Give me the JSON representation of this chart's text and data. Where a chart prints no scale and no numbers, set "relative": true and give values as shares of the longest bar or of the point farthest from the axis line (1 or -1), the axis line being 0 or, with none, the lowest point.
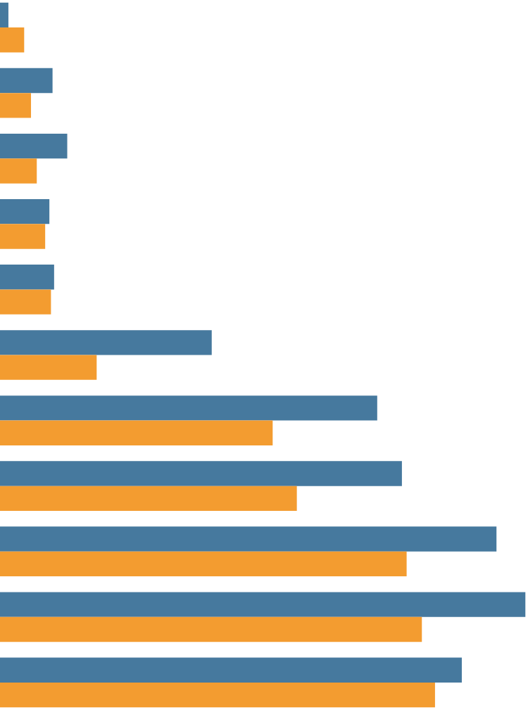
{
  "chart_data": {
    "type": "bar",
    "orientation": "horizontal",
    "relative": true,
    "categories": [
      null,
      null,
      null,
      null,
      null,
      null,
      null,
      null,
      null,
      null,
      null
    ],
    "series": [
      {
        "color": "#46799e",
        "values": [
          0.016,
          0.1,
          0.128,
          0.094,
          0.103,
          0.403,
          0.718,
          0.765,
          0.945,
          1,
          0.879
        ]
      },
      {
        "color": "#f39c30",
        "values": [
          0.046,
          0.059,
          0.07,
          0.086,
          0.097,
          0.184,
          0.519,
          0.565,
          0.774,
          0.803,
          0.828
        ]
      }
    ]
  }
}
